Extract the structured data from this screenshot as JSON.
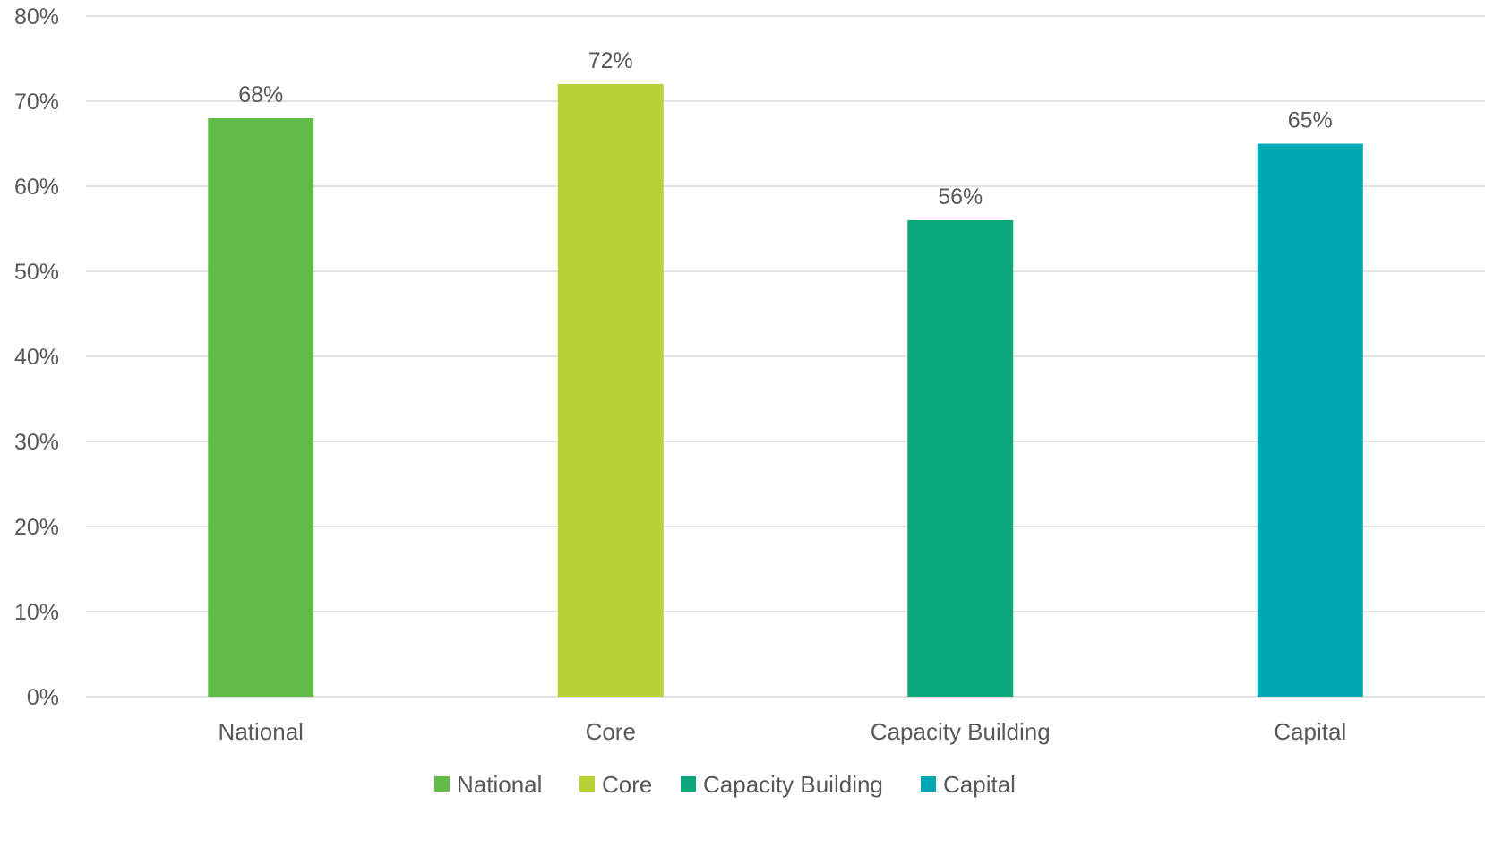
{
  "chart_data": {
    "type": "bar",
    "categories": [
      "National",
      "Core",
      "Capacity Building",
      "Capital"
    ],
    "values": [
      0.68,
      0.72,
      0.56,
      0.65
    ],
    "data_labels": [
      "68%",
      "72%",
      "56%",
      "65%"
    ],
    "colors": [
      "#62bb46",
      "#b5d334",
      "#0aa87a",
      "#00a8b4"
    ],
    "ylim": [
      0,
      0.8
    ],
    "yticks": [
      0,
      0.1,
      0.2,
      0.3,
      0.4,
      0.5,
      0.6,
      0.7,
      0.8
    ],
    "ytick_labels": [
      "0%",
      "10%",
      "20%",
      "30%",
      "40%",
      "50%",
      "60%",
      "70%",
      "80%"
    ],
    "grid": true,
    "legend": {
      "position": "bottom",
      "entries": [
        "National",
        "Core",
        "Capacity Building",
        "Capital"
      ]
    },
    "colors_style": {
      "text": "#595959",
      "grid": "#d9d9d9"
    }
  }
}
